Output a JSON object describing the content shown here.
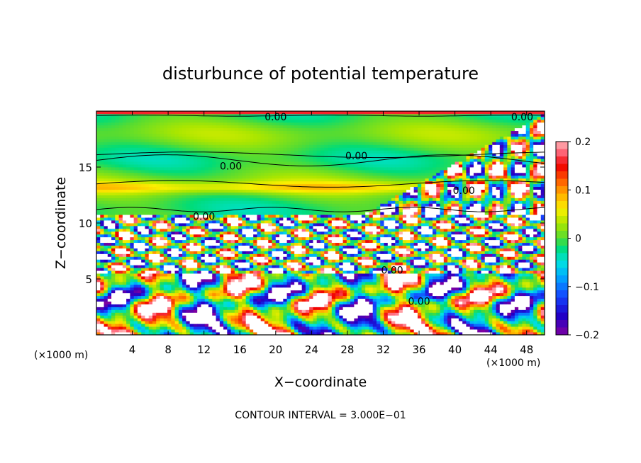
{
  "chart_data": {
    "type": "heatmap",
    "title": "disturbunce of potential temperature",
    "xlabel": "X−coordinate",
    "ylabel": "Z−coordinate",
    "x_unit": "(×1000 m)",
    "y_unit": "(×1000 m)",
    "xlim": [
      0,
      50
    ],
    "ylim": [
      0,
      20
    ],
    "x_ticks": [
      4,
      8,
      12,
      16,
      20,
      24,
      28,
      32,
      36,
      40,
      44,
      48
    ],
    "y_ticks": [
      5,
      10,
      15
    ],
    "colorbar": {
      "range": [
        -0.2,
        0.2
      ],
      "ticks": [
        "0.2",
        "0.1",
        "0",
        "−0.1",
        "−0.2"
      ],
      "tick_values": [
        0.2,
        0.1,
        0,
        -0.1,
        -0.2
      ]
    },
    "contour_labels": [
      "0.00",
      "0.00",
      "0.00",
      "0.00",
      "0.00",
      "0.00",
      "0.00",
      "0.00"
    ],
    "contour_interval_text": "CONTOUR INTERVAL =  3.000E−01",
    "grid": false,
    "legend": "colorbar-right"
  }
}
